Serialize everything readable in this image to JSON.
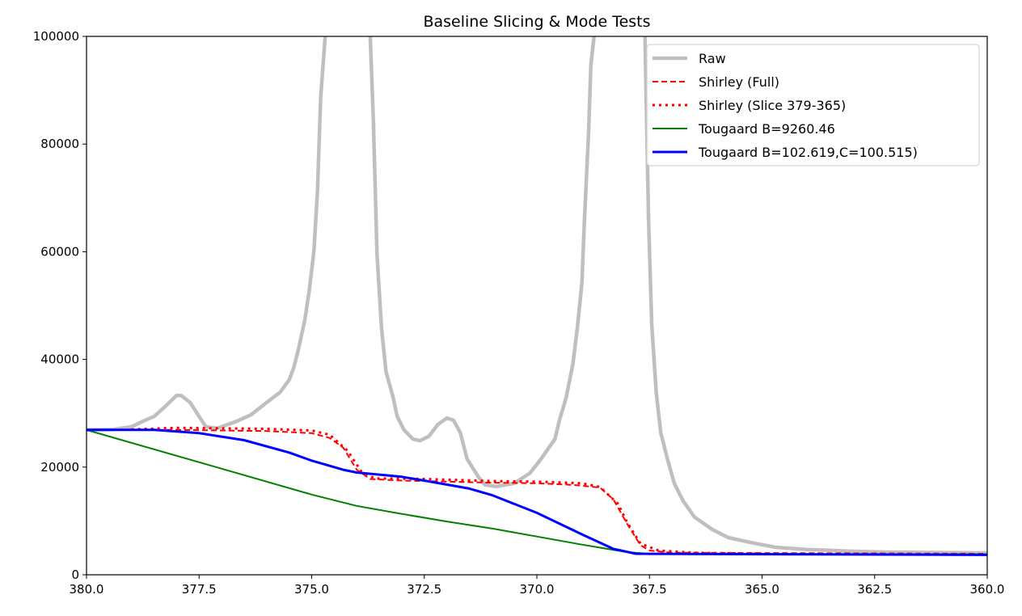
{
  "chart_data": {
    "type": "line",
    "title": "Baseline Slicing & Mode Tests",
    "xlabel": "",
    "ylabel": "",
    "xlim": [
      380,
      360
    ],
    "ylim": [
      0,
      100000
    ],
    "x_inverted": true,
    "grid": false,
    "legend_position": "top-right",
    "xticks": [
      380.0,
      377.5,
      375.0,
      372.5,
      370.0,
      367.5,
      365.0,
      362.5,
      360.0
    ],
    "xtick_labels": [
      "380.0",
      "377.5",
      "375.0",
      "372.5",
      "370.0",
      "367.5",
      "365.0",
      "362.5",
      "360.0"
    ],
    "yticks": [
      0,
      20000,
      40000,
      60000,
      80000,
      100000
    ],
    "ytick_labels": [
      "0",
      "20000",
      "40000",
      "60000",
      "80000",
      "100000"
    ],
    "series": [
      {
        "name": "Raw",
        "color": "#bfbfbf",
        "style": "solid",
        "points": [
          [
            380,
            26900
          ],
          [
            379.4,
            27000
          ],
          [
            379.0,
            27500
          ],
          [
            378.7,
            28700
          ],
          [
            378.5,
            29400
          ],
          [
            378.3,
            30900
          ],
          [
            378.15,
            32100
          ],
          [
            378.0,
            33300
          ],
          [
            377.9,
            33300
          ],
          [
            377.7,
            32000
          ],
          [
            377.5,
            29400
          ],
          [
            377.35,
            27500
          ],
          [
            377.1,
            27200
          ],
          [
            376.7,
            28400
          ],
          [
            376.35,
            29700
          ],
          [
            376.0,
            32000
          ],
          [
            375.7,
            33900
          ],
          [
            375.5,
            36200
          ],
          [
            375.4,
            38400
          ],
          [
            375.3,
            41700
          ],
          [
            375.15,
            47400
          ],
          [
            375.05,
            53000
          ],
          [
            374.95,
            60200
          ],
          [
            374.87,
            71500
          ],
          [
            374.8,
            88700
          ],
          [
            374.7,
            100000
          ],
          [
            374.3,
            150000
          ],
          [
            373.7,
            100000
          ],
          [
            373.63,
            84200
          ],
          [
            373.55,
            59500
          ],
          [
            373.45,
            45900
          ],
          [
            373.35,
            37700
          ],
          [
            373.2,
            33200
          ],
          [
            373.1,
            29400
          ],
          [
            372.95,
            26900
          ],
          [
            372.75,
            25200
          ],
          [
            372.6,
            24900
          ],
          [
            372.4,
            25700
          ],
          [
            372.2,
            27900
          ],
          [
            372.0,
            29100
          ],
          [
            371.85,
            28700
          ],
          [
            371.7,
            26400
          ],
          [
            371.55,
            21500
          ],
          [
            371.3,
            18200
          ],
          [
            371.15,
            16700
          ],
          [
            370.9,
            16400
          ],
          [
            370.5,
            17000
          ],
          [
            370.15,
            18900
          ],
          [
            369.9,
            21600
          ],
          [
            369.6,
            25200
          ],
          [
            369.5,
            28700
          ],
          [
            369.35,
            32900
          ],
          [
            369.2,
            39200
          ],
          [
            369.1,
            45900
          ],
          [
            369.0,
            54200
          ],
          [
            368.95,
            64700
          ],
          [
            368.85,
            82700
          ],
          [
            368.8,
            94700
          ],
          [
            368.73,
            100000
          ],
          [
            368.2,
            150000
          ],
          [
            367.6,
            100000
          ],
          [
            367.52,
            66200
          ],
          [
            367.45,
            46700
          ],
          [
            367.35,
            33900
          ],
          [
            367.25,
            26400
          ],
          [
            367.1,
            21500
          ],
          [
            366.95,
            17000
          ],
          [
            366.75,
            13700
          ],
          [
            366.5,
            10700
          ],
          [
            366.1,
            8400
          ],
          [
            365.75,
            6900
          ],
          [
            365.2,
            5900
          ],
          [
            364.7,
            5100
          ],
          [
            364.0,
            4700
          ],
          [
            363.1,
            4400
          ],
          [
            362.2,
            4200
          ],
          [
            360,
            4050
          ]
        ]
      },
      {
        "name": "Shirley (Full)",
        "color": "#ff0000",
        "style": "dashed",
        "points": [
          [
            380,
            26900
          ],
          [
            378,
            26900
          ],
          [
            376,
            26700
          ],
          [
            375,
            26300
          ],
          [
            374.6,
            25400
          ],
          [
            374.3,
            23600
          ],
          [
            374.0,
            19500
          ],
          [
            373.7,
            17800
          ],
          [
            373,
            17500
          ],
          [
            372,
            17300
          ],
          [
            371,
            17100
          ],
          [
            370,
            17000
          ],
          [
            369.2,
            16700
          ],
          [
            368.6,
            16200
          ],
          [
            368.3,
            14000
          ],
          [
            368.0,
            9500
          ],
          [
            367.7,
            5500
          ],
          [
            367.5,
            4500
          ],
          [
            367,
            4100
          ],
          [
            360,
            3900
          ]
        ]
      },
      {
        "name": "Shirley (Slice 379-365)",
        "color": "#ff0000",
        "style": "dotted",
        "points": [
          [
            379,
            27000
          ],
          [
            378,
            27300
          ],
          [
            376,
            27100
          ],
          [
            375,
            26800
          ],
          [
            374.6,
            26000
          ],
          [
            374.2,
            23000
          ],
          [
            373.9,
            19200
          ],
          [
            373.6,
            17900
          ],
          [
            372.5,
            17800
          ],
          [
            371,
            17400
          ],
          [
            370,
            17300
          ],
          [
            369,
            17000
          ],
          [
            368.6,
            16300
          ],
          [
            368.2,
            13200
          ],
          [
            368,
            9800
          ],
          [
            367.7,
            5800
          ],
          [
            367.3,
            4500
          ],
          [
            366.5,
            4100
          ],
          [
            365,
            3900
          ]
        ]
      },
      {
        "name": "Tougaard B=9260.46",
        "color": "#008000",
        "style": "solid",
        "points": [
          [
            380,
            26900
          ],
          [
            377.5,
            20900
          ],
          [
            375,
            14900
          ],
          [
            374,
            12800
          ],
          [
            373,
            11300
          ],
          [
            372,
            9900
          ],
          [
            371,
            8600
          ],
          [
            370,
            7100
          ],
          [
            369,
            5600
          ],
          [
            368,
            4200
          ],
          [
            367.5,
            3900
          ],
          [
            360,
            3800
          ]
        ]
      },
      {
        "name": "Tougaard B=102.619,C=100.515)",
        "color": "#0000ff",
        "style": "solid",
        "points": [
          [
            380,
            26900
          ],
          [
            378.5,
            26900
          ],
          [
            377.5,
            26300
          ],
          [
            376.5,
            25000
          ],
          [
            375.5,
            22700
          ],
          [
            375,
            21200
          ],
          [
            374.3,
            19500
          ],
          [
            374,
            19000
          ],
          [
            373,
            18200
          ],
          [
            372.5,
            17500
          ],
          [
            371.5,
            16000
          ],
          [
            371,
            14800
          ],
          [
            370,
            11500
          ],
          [
            369,
            7500
          ],
          [
            368.3,
            4800
          ],
          [
            367.8,
            3900
          ],
          [
            360,
            3700
          ]
        ]
      }
    ]
  }
}
